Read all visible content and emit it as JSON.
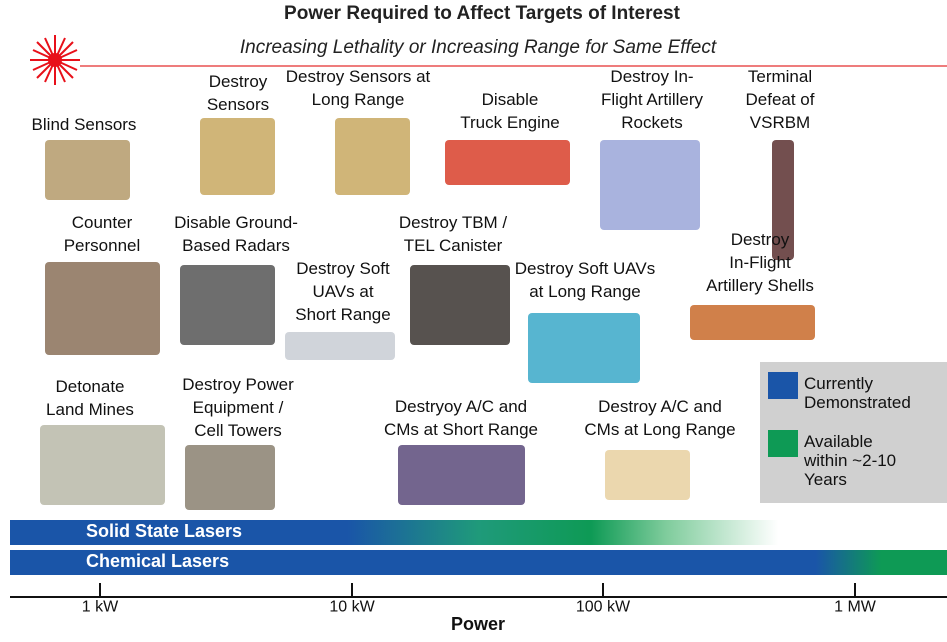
{
  "title": "Power Required to Affect Targets of Interest",
  "subtitle": "Increasing Lethality or Increasing Range for Same Effect",
  "targets": [
    {
      "lines": [
        "Blind Sensors"
      ]
    },
    {
      "lines": [
        "Destroy",
        "Sensors"
      ]
    },
    {
      "lines": [
        "Destroy Sensors at",
        "Long Range"
      ]
    },
    {
      "lines": [
        "Disable",
        "Truck Engine"
      ]
    },
    {
      "lines": [
        "Destroy In-",
        "Flight Artillery",
        "Rockets"
      ]
    },
    {
      "lines": [
        "Terminal",
        "Defeat of",
        "VSRBM"
      ]
    },
    {
      "lines": [
        "Counter",
        "Personnel"
      ]
    },
    {
      "lines": [
        "Disable Ground-",
        "Based Radars"
      ]
    },
    {
      "lines": [
        "Destroy TBM /",
        "TEL Canister"
      ]
    },
    {
      "lines": [
        "Destroy Soft",
        "UAVs at",
        "Short Range"
      ]
    },
    {
      "lines": [
        "Destroy Soft UAVs",
        "at Long Range"
      ]
    },
    {
      "lines": [
        "Destroy",
        "In-Flight",
        "Artillery Shells"
      ]
    },
    {
      "lines": [
        "Detonate",
        "Land Mines"
      ]
    },
    {
      "lines": [
        "Destroy Power",
        "Equipment /",
        "Cell Towers"
      ]
    },
    {
      "lines": [
        "Destryoy A/C and",
        "CMs at Short Range"
      ]
    },
    {
      "lines": [
        "Destroy A/C and",
        "CMs at Long Range"
      ]
    }
  ],
  "legend": [
    {
      "lines": [
        "Currently",
        "Demonstrated"
      ]
    },
    {
      "lines": [
        "Available",
        "within ~2-10",
        "Years"
      ]
    }
  ],
  "bars": [
    "Solid State Lasers",
    "Chemical Lasers"
  ],
  "axis": {
    "ticks": [
      "1 kW",
      "10 kW",
      "100 kW",
      "1 MW"
    ],
    "label": "Power"
  }
}
